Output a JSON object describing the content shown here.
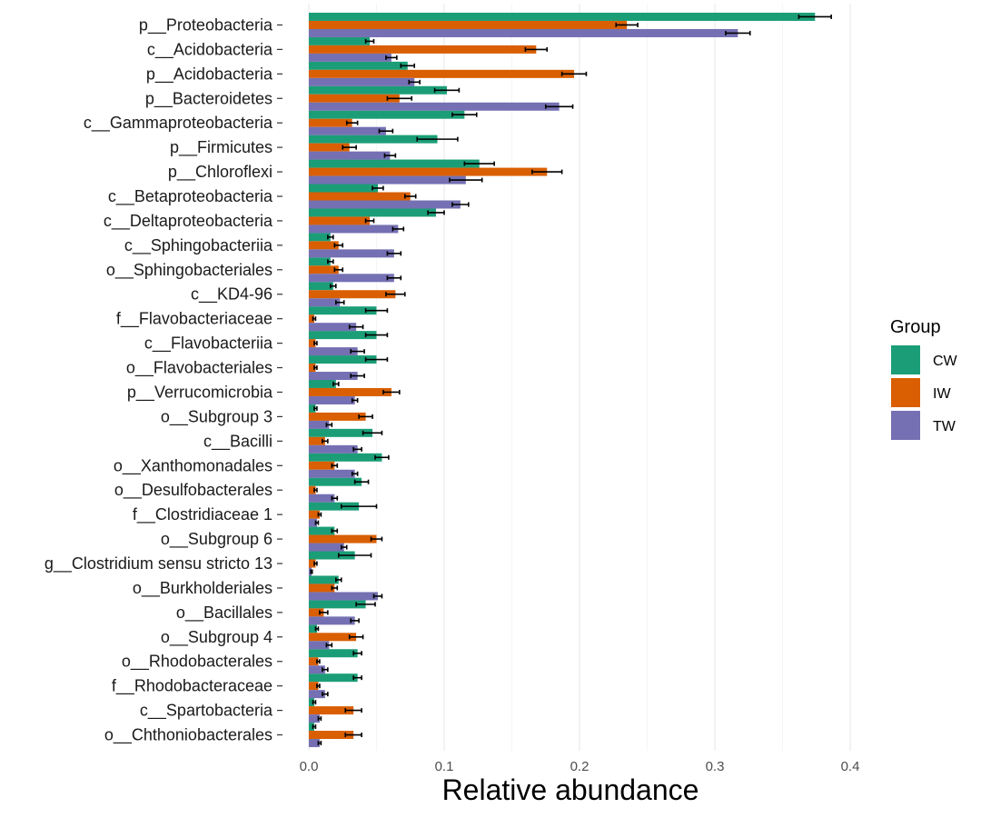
{
  "chart_data": {
    "type": "bar",
    "orientation": "horizontal",
    "title": "",
    "xlabel": "Relative abundance",
    "ylabel": "",
    "xlim": [
      0,
      0.4
    ],
    "x_ticks": [
      0.0,
      0.1,
      0.2,
      0.3,
      0.4
    ],
    "x_tick_labels": [
      "0.0",
      "0.1",
      "0.2",
      "0.3",
      "0.4"
    ],
    "grid": true,
    "legend": {
      "title": "Group",
      "position": "right"
    },
    "categories": [
      "p__Proteobacteria",
      "c__Acidobacteria",
      "p__Acidobacteria",
      "p__Bacteroidetes",
      "c__Gammaproteobacteria",
      "p__Firmicutes",
      "p__Chloroflexi",
      "c__Betaproteobacteria",
      "c__Deltaproteobacteria",
      "c__Sphingobacteriia",
      "o__Sphingobacteriales",
      "c__KD4-96",
      "f__Flavobacteriaceae",
      "c__Flavobacteriia",
      "o__Flavobacteriales",
      "p__Verrucomicrobia",
      "o__Subgroup 3",
      "c__Bacilli",
      "o__Xanthomonadales",
      "o__Desulfobacterales",
      "f__Clostridiaceae 1",
      "o__Subgroup 6",
      "g__Clostridium sensu stricto 13",
      "o__Burkholderiales",
      "o__Bacillales",
      "o__Subgroup 4",
      "o__Rhodobacterales",
      "f__Rhodobacteraceae",
      "c__Spartobacteria",
      "o__Chthoniobacterales"
    ],
    "series": [
      {
        "name": "CW",
        "color": "#1b9e77",
        "values": [
          0.374,
          0.045,
          0.073,
          0.102,
          0.115,
          0.095,
          0.126,
          0.051,
          0.094,
          0.016,
          0.016,
          0.018,
          0.05,
          0.05,
          0.05,
          0.02,
          0.005,
          0.047,
          0.054,
          0.039,
          0.037,
          0.019,
          0.034,
          0.022,
          0.042,
          0.006,
          0.036,
          0.036,
          0.004,
          0.004
        ],
        "errors": [
          0.012,
          0.003,
          0.005,
          0.009,
          0.009,
          0.015,
          0.011,
          0.004,
          0.006,
          0.002,
          0.002,
          0.002,
          0.008,
          0.008,
          0.008,
          0.002,
          0.001,
          0.007,
          0.005,
          0.005,
          0.013,
          0.002,
          0.012,
          0.002,
          0.007,
          0.001,
          0.003,
          0.003,
          0.001,
          0.001
        ]
      },
      {
        "name": "IW",
        "color": "#d95f02",
        "values": [
          0.235,
          0.168,
          0.196,
          0.067,
          0.032,
          0.03,
          0.176,
          0.075,
          0.045,
          0.022,
          0.022,
          0.064,
          0.004,
          0.005,
          0.005,
          0.061,
          0.042,
          0.012,
          0.019,
          0.005,
          0.008,
          0.05,
          0.005,
          0.019,
          0.011,
          0.035,
          0.007,
          0.007,
          0.033,
          0.033
        ],
        "errors": [
          0.008,
          0.008,
          0.009,
          0.009,
          0.004,
          0.005,
          0.011,
          0.004,
          0.003,
          0.003,
          0.003,
          0.007,
          0.001,
          0.001,
          0.001,
          0.006,
          0.005,
          0.002,
          0.002,
          0.001,
          0.001,
          0.004,
          0.001,
          0.002,
          0.003,
          0.005,
          0.001,
          0.001,
          0.006,
          0.006
        ]
      },
      {
        "name": "TW",
        "color": "#7570b3",
        "values": [
          0.317,
          0.061,
          0.078,
          0.185,
          0.057,
          0.06,
          0.116,
          0.112,
          0.066,
          0.063,
          0.063,
          0.023,
          0.035,
          0.036,
          0.036,
          0.034,
          0.015,
          0.036,
          0.034,
          0.019,
          0.006,
          0.026,
          0.002,
          0.051,
          0.034,
          0.015,
          0.012,
          0.012,
          0.008,
          0.008
        ],
        "errors": [
          0.009,
          0.004,
          0.004,
          0.01,
          0.005,
          0.004,
          0.012,
          0.006,
          0.004,
          0.005,
          0.005,
          0.003,
          0.005,
          0.005,
          0.005,
          0.002,
          0.002,
          0.003,
          0.002,
          0.002,
          0.001,
          0.002,
          0.0005,
          0.003,
          0.003,
          0.002,
          0.002,
          0.002,
          0.001,
          0.001
        ]
      }
    ]
  }
}
